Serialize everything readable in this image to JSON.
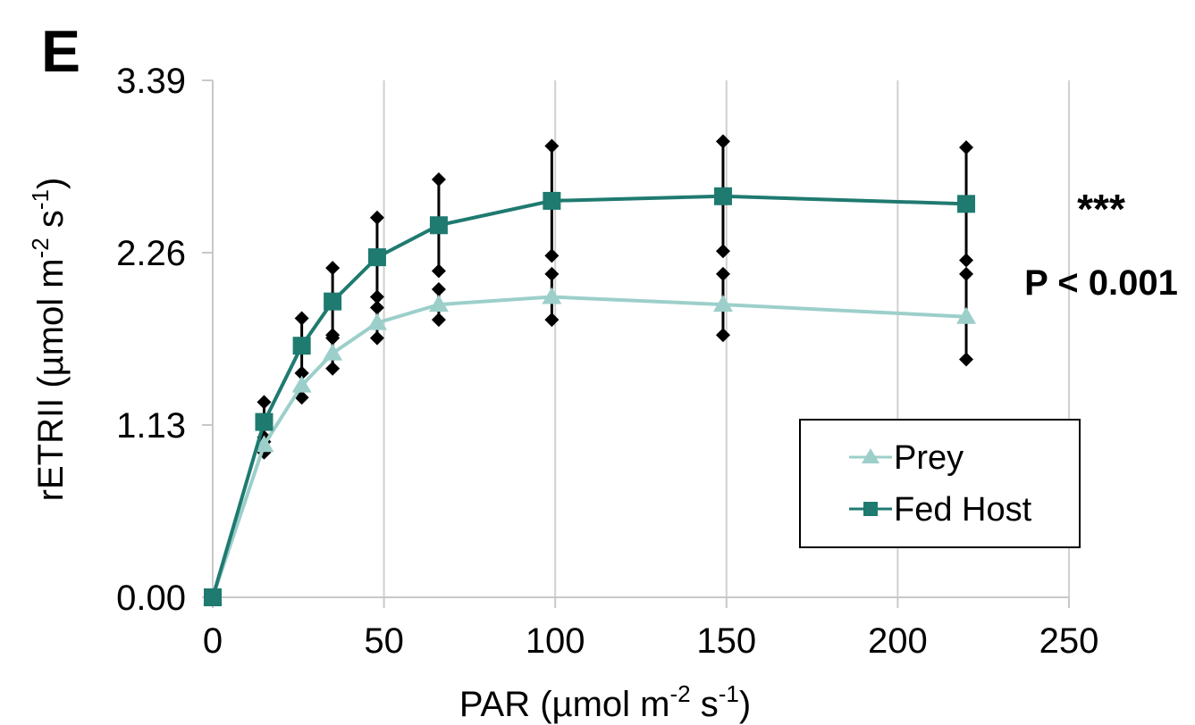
{
  "panel_label": "E",
  "chart_data": {
    "type": "line",
    "xlabel": "PAR (µmol m",
    "xlabel_sup1": "-2",
    "xlabel_mid": " s",
    "xlabel_sup2": "-1",
    "xlabel_end": ")",
    "ylabel": "rETRII (µmol m",
    "ylabel_sup1": "-2",
    "ylabel_mid": " s",
    "ylabel_sup2": "-1",
    "ylabel_end": ")",
    "xlim": [
      0,
      250
    ],
    "ylim": [
      0,
      3.39
    ],
    "xticks": [
      "0",
      "50",
      "100",
      "150",
      "200",
      "250"
    ],
    "yticks": [
      "0.00",
      "1.13",
      "2.26",
      "3.39"
    ],
    "grid": "vertical",
    "series": [
      {
        "name": "Prey",
        "color": "#9ccfca",
        "marker": "triangle",
        "x": [
          0,
          15,
          26,
          35,
          48,
          66,
          99,
          149,
          220
        ],
        "y": [
          0.0,
          1.0,
          1.39,
          1.6,
          1.8,
          1.92,
          1.97,
          1.92,
          1.84
        ],
        "err": [
          0.0,
          0.05,
          0.08,
          0.1,
          0.1,
          0.1,
          0.15,
          0.2,
          0.28
        ]
      },
      {
        "name": "Fed Host",
        "color": "#1f7a70",
        "marker": "square",
        "x": [
          0,
          15,
          26,
          35,
          48,
          66,
          99,
          149,
          220
        ],
        "y": [
          0.0,
          1.15,
          1.65,
          1.94,
          2.23,
          2.44,
          2.6,
          2.63,
          2.58
        ],
        "err": [
          0.0,
          0.13,
          0.18,
          0.22,
          0.26,
          0.3,
          0.36,
          0.36,
          0.37
        ]
      }
    ],
    "annotations": {
      "significance": "***",
      "p_value": "P < 0.001"
    },
    "legend": {
      "placement": "bottom-right",
      "entries": [
        "Prey",
        "Fed Host"
      ]
    }
  }
}
